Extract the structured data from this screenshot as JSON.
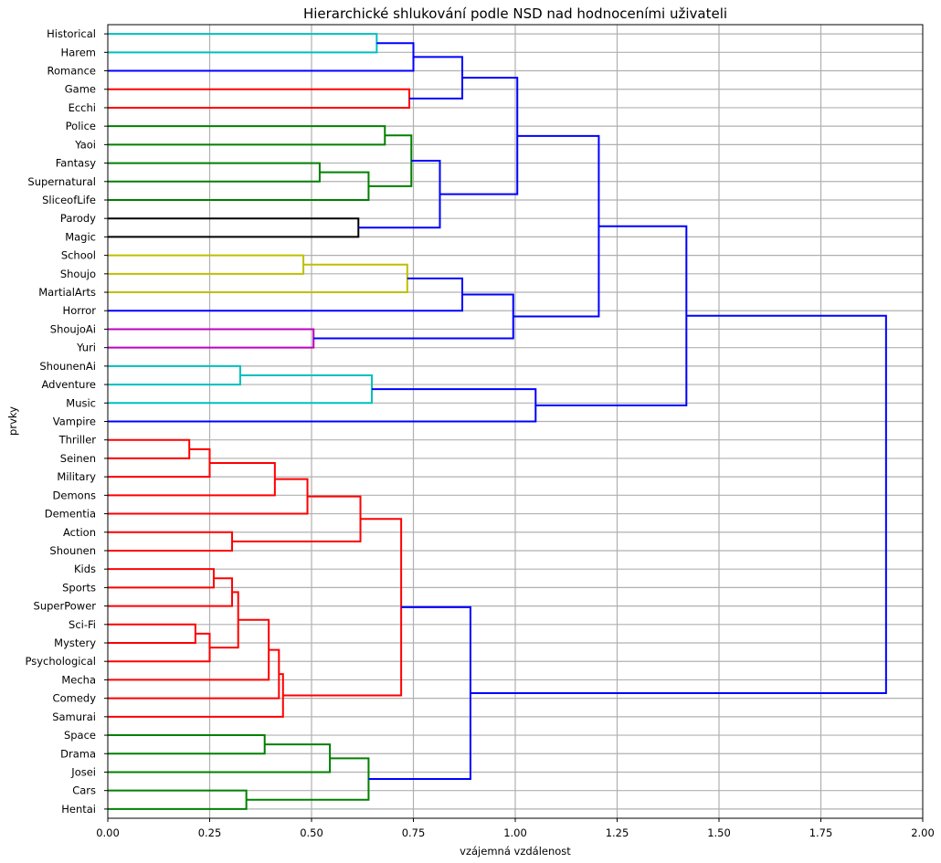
{
  "chart_data": {
    "type": "dendrogram",
    "orientation": "horizontal",
    "title": "Hierarchické shlukování podle NSD nad hodnoceními uživateli",
    "xlabel": "vzájemná vzdálenost",
    "ylabel": "prvky",
    "xlim": [
      0,
      2.0
    ],
    "xticks": [
      "0.00",
      "0.25",
      "0.50",
      "0.75",
      "1.00",
      "1.25",
      "1.50",
      "1.75",
      "2.00"
    ],
    "grid": true,
    "leaves": [
      "Historical",
      "Harem",
      "Romance",
      "Game",
      "Ecchi",
      "Police",
      "Yaoi",
      "Fantasy",
      "Supernatural",
      "SliceofLife",
      "Parody",
      "Magic",
      "School",
      "Shoujo",
      "MartialArts",
      "Horror",
      "ShoujoAi",
      "Yuri",
      "ShounenAi",
      "Adventure",
      "Music",
      "Vampire",
      "Thriller",
      "Seinen",
      "Military",
      "Demons",
      "Dementia",
      "Action",
      "Shounen",
      "Kids",
      "Sports",
      "SuperPower",
      "Sci-Fi",
      "Mystery",
      "Psychological",
      "Mecha",
      "Comedy",
      "Samurai",
      "Space",
      "Drama",
      "Josei",
      "Cars",
      "Hentai"
    ],
    "colors": {
      "c": "#00bfbf",
      "b": "#0000ff",
      "r": "#ff0000",
      "g": "#008000",
      "k": "#000000",
      "y": "#bfbf00",
      "m": "#bf00bf"
    },
    "merges": [
      {
        "a": "L0",
        "b": "L1",
        "d": 0.66,
        "c": "c"
      },
      {
        "a": "M0",
        "b": "L2",
        "d": 0.75,
        "c": "b"
      },
      {
        "a": "L3",
        "b": "L4",
        "d": 0.74,
        "c": "r"
      },
      {
        "a": "M1",
        "b": "M2",
        "d": 0.87,
        "c": "b"
      },
      {
        "a": "L5",
        "b": "L6",
        "d": 0.68,
        "c": "g"
      },
      {
        "a": "L7",
        "b": "L8",
        "d": 0.52,
        "c": "g"
      },
      {
        "a": "M5",
        "b": "L9",
        "d": 0.64,
        "c": "g"
      },
      {
        "a": "M4",
        "b": "M6",
        "d": 0.745,
        "c": "g"
      },
      {
        "a": "L10",
        "b": "L11",
        "d": 0.615,
        "c": "k"
      },
      {
        "a": "M7",
        "b": "M8",
        "d": 0.815,
        "c": "b"
      },
      {
        "a": "M3",
        "b": "M9",
        "d": 1.005,
        "c": "b"
      },
      {
        "a": "L12",
        "b": "L13",
        "d": 0.48,
        "c": "y"
      },
      {
        "a": "M11",
        "b": "L14",
        "d": 0.735,
        "c": "y"
      },
      {
        "a": "M12",
        "b": "L15",
        "d": 0.87,
        "c": "b"
      },
      {
        "a": "L16",
        "b": "L17",
        "d": 0.505,
        "c": "m"
      },
      {
        "a": "M13",
        "b": "M14",
        "d": 0.995,
        "c": "b"
      },
      {
        "a": "M10",
        "b": "M15",
        "d": 1.205,
        "c": "b"
      },
      {
        "a": "L18",
        "b": "L19",
        "d": 0.325,
        "c": "c"
      },
      {
        "a": "M17",
        "b": "L20",
        "d": 0.648,
        "c": "c"
      },
      {
        "a": "M18",
        "b": "L21",
        "d": 1.05,
        "c": "b"
      },
      {
        "a": "M16",
        "b": "M19",
        "d": 1.42,
        "c": "b"
      },
      {
        "a": "L22",
        "b": "L23",
        "d": 0.2,
        "c": "r"
      },
      {
        "a": "M21",
        "b": "L24",
        "d": 0.25,
        "c": "r"
      },
      {
        "a": "M22",
        "b": "L25",
        "d": 0.41,
        "c": "r"
      },
      {
        "a": "M23",
        "b": "L26",
        "d": 0.49,
        "c": "r"
      },
      {
        "a": "L27",
        "b": "L28",
        "d": 0.305,
        "c": "r"
      },
      {
        "a": "M24",
        "b": "M25",
        "d": 0.62,
        "c": "r"
      },
      {
        "a": "L29",
        "b": "L30",
        "d": 0.26,
        "c": "r"
      },
      {
        "a": "M27",
        "b": "L31",
        "d": 0.305,
        "c": "r"
      },
      {
        "a": "L32",
        "b": "L33",
        "d": 0.215,
        "c": "r"
      },
      {
        "a": "M29",
        "b": "L34",
        "d": 0.25,
        "c": "r"
      },
      {
        "a": "M28",
        "b": "M30",
        "d": 0.32,
        "c": "r"
      },
      {
        "a": "M31",
        "b": "L35",
        "d": 0.395,
        "c": "r"
      },
      {
        "a": "M32",
        "b": "L36",
        "d": 0.42,
        "c": "r"
      },
      {
        "a": "M33",
        "b": "L37",
        "d": 0.43,
        "c": "r"
      },
      {
        "a": "M26",
        "b": "M34",
        "d": 0.72,
        "c": "r"
      },
      {
        "a": "L38",
        "b": "L39",
        "d": 0.385,
        "c": "g"
      },
      {
        "a": "M36",
        "b": "L40",
        "d": 0.545,
        "c": "g"
      },
      {
        "a": "L41",
        "b": "L42",
        "d": 0.34,
        "c": "g"
      },
      {
        "a": "M37",
        "b": "M38",
        "d": 0.64,
        "c": "g"
      },
      {
        "a": "M35",
        "b": "M39",
        "d": 0.89,
        "c": "b"
      },
      {
        "a": "M20",
        "b": "M40",
        "d": 1.91,
        "c": "b"
      }
    ]
  }
}
